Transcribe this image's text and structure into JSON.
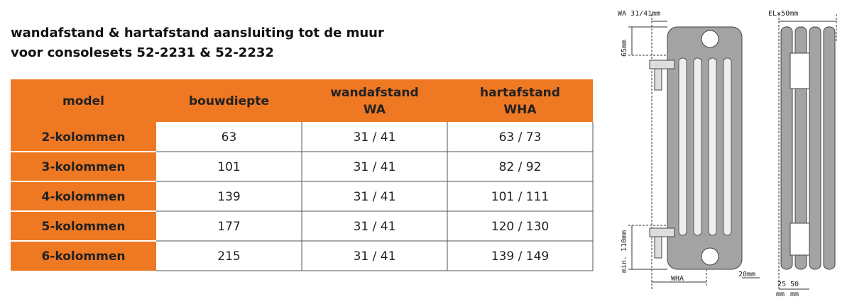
{
  "header": {
    "title": [
      "wandafstand & hartafstand aansluiting tot de muur",
      "voor consolesets 52-2231 & 52-2232"
    ]
  },
  "table": {
    "columns": [
      [
        "model"
      ],
      [
        "bouwdiepte"
      ],
      [
        "wandafstand",
        "WA"
      ],
      [
        "hartafstand",
        "WHA"
      ]
    ],
    "rows": [
      [
        "2-kolommen",
        "63",
        "31 / 41",
        "63 / 73"
      ],
      [
        "3-kolommen",
        "101",
        "31 / 41",
        "82 / 92"
      ],
      [
        "4-kolommen",
        "139",
        "31 / 41",
        "101 / 111"
      ],
      [
        "5-kolommen",
        "177",
        "31 / 41",
        "120 / 130"
      ],
      [
        "6-kolommen",
        "215",
        "31 / 41",
        "139 / 149"
      ]
    ]
  },
  "diagram": {
    "labels": {
      "wa": "WA 31/41mm",
      "el": "EL×50mm",
      "top": "65mm",
      "bottom": "min. 110mm",
      "wha": "WHA",
      "gap": "20mm",
      "d25": "25",
      "d50": "50",
      "unit1": "mm",
      "unit2": "mm"
    }
  }
}
